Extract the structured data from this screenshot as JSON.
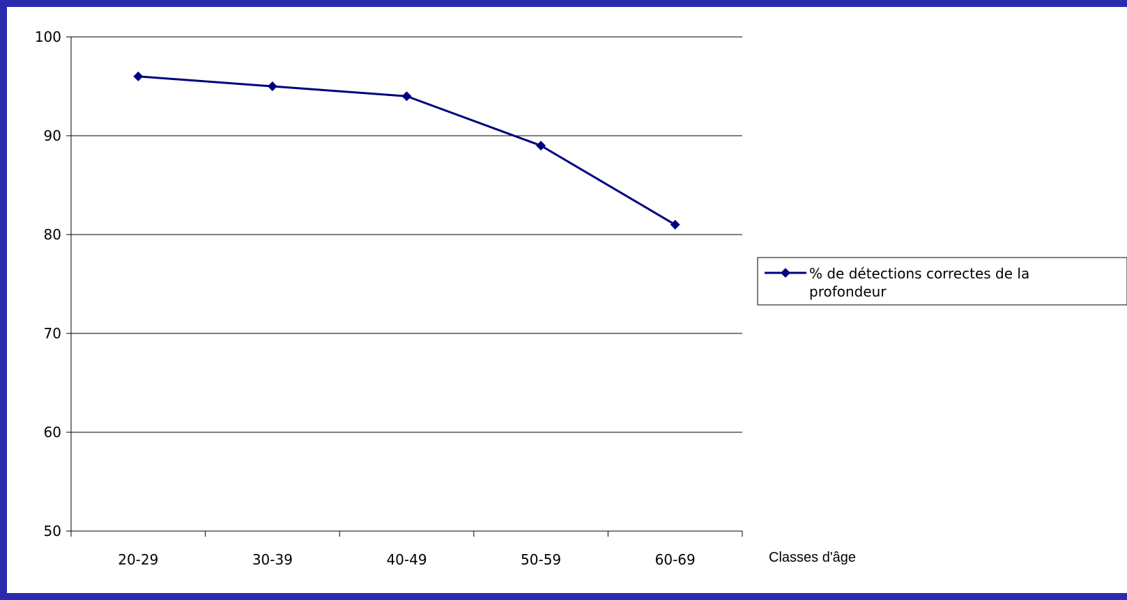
{
  "chart_data": {
    "type": "line",
    "categories": [
      "20-29",
      "30-39",
      "40-49",
      "50-59",
      "60-69"
    ],
    "series": [
      {
        "name": "% de détections correctes de la profondeur",
        "values": [
          96,
          95,
          94,
          89,
          81
        ]
      }
    ],
    "xlabel": "Classes d'âge",
    "ylabel": "",
    "ylim": [
      50,
      100
    ],
    "yticks": [
      50,
      60,
      70,
      80,
      90,
      100
    ],
    "grid": true,
    "legend_position": "right",
    "series_color": "#00007f"
  }
}
